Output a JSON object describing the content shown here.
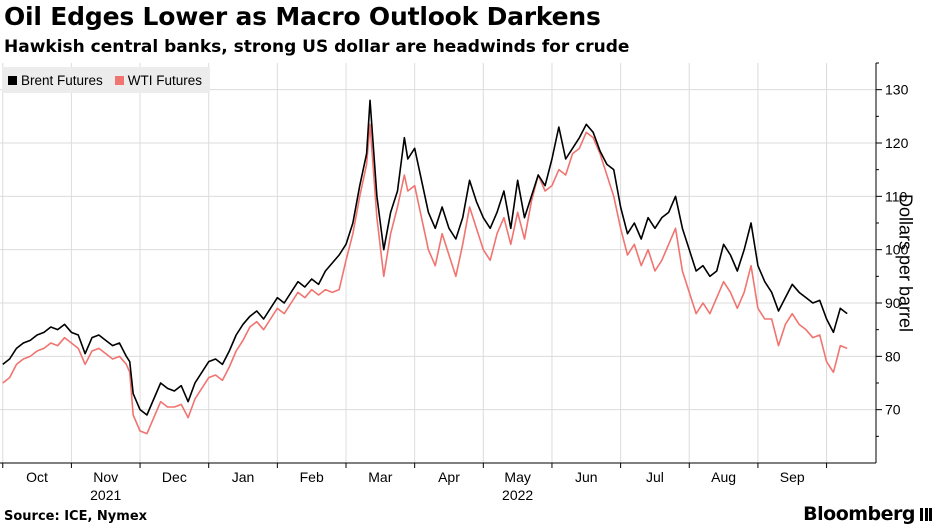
{
  "chart_data": {
    "type": "line",
    "title": "Oil Edges Lower as Macro Outlook Darkens",
    "subtitle": "Hawkish central banks, strong US dollar are headwinds for crude",
    "ylabel": "Dollars per barrel",
    "xlabel": "",
    "ylim": [
      60,
      135
    ],
    "yticks": [
      70,
      80,
      90,
      100,
      110,
      120,
      130
    ],
    "x_months": [
      {
        "label": "Oct",
        "pos": 0.5
      },
      {
        "label": "Nov",
        "pos": 1.5,
        "year": "2021"
      },
      {
        "label": "Dec",
        "pos": 2.5
      },
      {
        "label": "Jan",
        "pos": 3.5
      },
      {
        "label": "Feb",
        "pos": 4.5
      },
      {
        "label": "Mar",
        "pos": 5.5
      },
      {
        "label": "Apr",
        "pos": 6.5
      },
      {
        "label": "May",
        "pos": 7.5,
        "year": "2022"
      },
      {
        "label": "Jun",
        "pos": 8.5
      },
      {
        "label": "Jul",
        "pos": 9.5
      },
      {
        "label": "Aug",
        "pos": 10.5
      },
      {
        "label": "Sep",
        "pos": 11.5
      }
    ],
    "x_start": 0.0,
    "x_end": 12.3,
    "series": [
      {
        "name": "Brent Futures",
        "color": "#000000",
        "points": [
          [
            0.0,
            78.5
          ],
          [
            0.1,
            79.5
          ],
          [
            0.2,
            81.5
          ],
          [
            0.3,
            82.5
          ],
          [
            0.4,
            83.0
          ],
          [
            0.5,
            84.0
          ],
          [
            0.6,
            84.5
          ],
          [
            0.7,
            85.5
          ],
          [
            0.8,
            85.0
          ],
          [
            0.9,
            86.0
          ],
          [
            1.0,
            84.5
          ],
          [
            1.1,
            84.0
          ],
          [
            1.2,
            80.5
          ],
          [
            1.3,
            83.5
          ],
          [
            1.4,
            84.0
          ],
          [
            1.5,
            83.0
          ],
          [
            1.6,
            82.0
          ],
          [
            1.7,
            82.5
          ],
          [
            1.8,
            80.0
          ],
          [
            1.85,
            79.0
          ],
          [
            1.9,
            73.0
          ],
          [
            2.0,
            70.0
          ],
          [
            2.1,
            69.0
          ],
          [
            2.2,
            72.0
          ],
          [
            2.3,
            75.0
          ],
          [
            2.4,
            74.0
          ],
          [
            2.5,
            73.5
          ],
          [
            2.6,
            74.5
          ],
          [
            2.7,
            71.5
          ],
          [
            2.8,
            75.0
          ],
          [
            2.9,
            77.0
          ],
          [
            3.0,
            79.0
          ],
          [
            3.1,
            79.5
          ],
          [
            3.2,
            78.5
          ],
          [
            3.3,
            81.0
          ],
          [
            3.4,
            84.0
          ],
          [
            3.5,
            86.0
          ],
          [
            3.6,
            87.5
          ],
          [
            3.7,
            88.5
          ],
          [
            3.8,
            87.0
          ],
          [
            3.9,
            89.0
          ],
          [
            4.0,
            91.0
          ],
          [
            4.1,
            90.0
          ],
          [
            4.2,
            92.0
          ],
          [
            4.3,
            94.0
          ],
          [
            4.4,
            93.0
          ],
          [
            4.5,
            94.5
          ],
          [
            4.6,
            93.5
          ],
          [
            4.7,
            96.0
          ],
          [
            4.8,
            97.5
          ],
          [
            4.9,
            99.0
          ],
          [
            5.0,
            101.0
          ],
          [
            5.1,
            105.0
          ],
          [
            5.2,
            112.0
          ],
          [
            5.3,
            118.0
          ],
          [
            5.35,
            128.0
          ],
          [
            5.45,
            110.0
          ],
          [
            5.55,
            100.0
          ],
          [
            5.65,
            107.0
          ],
          [
            5.75,
            111.0
          ],
          [
            5.85,
            121.0
          ],
          [
            5.9,
            117.0
          ],
          [
            6.0,
            119.0
          ],
          [
            6.1,
            113.0
          ],
          [
            6.2,
            107.0
          ],
          [
            6.3,
            104.0
          ],
          [
            6.4,
            108.0
          ],
          [
            6.5,
            104.0
          ],
          [
            6.6,
            102.0
          ],
          [
            6.7,
            106.0
          ],
          [
            6.8,
            113.0
          ],
          [
            6.9,
            109.0
          ],
          [
            7.0,
            106.0
          ],
          [
            7.1,
            104.0
          ],
          [
            7.2,
            107.0
          ],
          [
            7.3,
            111.0
          ],
          [
            7.4,
            104.0
          ],
          [
            7.5,
            113.0
          ],
          [
            7.6,
            106.0
          ],
          [
            7.7,
            110.0
          ],
          [
            7.8,
            114.0
          ],
          [
            7.9,
            112.0
          ],
          [
            8.0,
            117.0
          ],
          [
            8.1,
            123.0
          ],
          [
            8.2,
            117.0
          ],
          [
            8.3,
            119.0
          ],
          [
            8.4,
            121.0
          ],
          [
            8.5,
            123.5
          ],
          [
            8.6,
            122.0
          ],
          [
            8.7,
            118.5
          ],
          [
            8.8,
            116.0
          ],
          [
            8.9,
            115.0
          ],
          [
            9.0,
            108.0
          ],
          [
            9.1,
            103.0
          ],
          [
            9.2,
            105.0
          ],
          [
            9.3,
            102.0
          ],
          [
            9.4,
            106.0
          ],
          [
            9.5,
            104.0
          ],
          [
            9.6,
            106.0
          ],
          [
            9.7,
            107.0
          ],
          [
            9.8,
            110.0
          ],
          [
            9.9,
            104.0
          ],
          [
            10.0,
            100.0
          ],
          [
            10.1,
            96.0
          ],
          [
            10.2,
            97.0
          ],
          [
            10.3,
            95.0
          ],
          [
            10.4,
            96.0
          ],
          [
            10.5,
            101.0
          ],
          [
            10.6,
            99.0
          ],
          [
            10.7,
            96.0
          ],
          [
            10.8,
            100.0
          ],
          [
            10.9,
            105.0
          ],
          [
            11.0,
            97.0
          ],
          [
            11.1,
            94.0
          ],
          [
            11.2,
            92.0
          ],
          [
            11.3,
            88.5
          ],
          [
            11.4,
            91.0
          ],
          [
            11.5,
            93.5
          ],
          [
            11.6,
            92.0
          ],
          [
            11.7,
            91.0
          ],
          [
            11.8,
            90.0
          ],
          [
            11.9,
            90.5
          ],
          [
            12.0,
            87.0
          ],
          [
            12.1,
            84.5
          ],
          [
            12.2,
            89.0
          ],
          [
            12.3,
            88.0
          ]
        ]
      },
      {
        "name": "WTI Futures",
        "color": "#f07470",
        "points": [
          [
            0.0,
            75.0
          ],
          [
            0.1,
            76.0
          ],
          [
            0.2,
            78.5
          ],
          [
            0.3,
            79.5
          ],
          [
            0.4,
            80.0
          ],
          [
            0.5,
            81.0
          ],
          [
            0.6,
            81.5
          ],
          [
            0.7,
            82.5
          ],
          [
            0.8,
            82.0
          ],
          [
            0.9,
            83.5
          ],
          [
            1.0,
            82.5
          ],
          [
            1.1,
            81.5
          ],
          [
            1.2,
            78.5
          ],
          [
            1.3,
            81.0
          ],
          [
            1.4,
            81.5
          ],
          [
            1.5,
            80.5
          ],
          [
            1.6,
            79.5
          ],
          [
            1.7,
            80.0
          ],
          [
            1.8,
            78.5
          ],
          [
            1.85,
            77.0
          ],
          [
            1.9,
            69.0
          ],
          [
            2.0,
            66.0
          ],
          [
            2.1,
            65.5
          ],
          [
            2.2,
            68.5
          ],
          [
            2.3,
            71.5
          ],
          [
            2.4,
            70.5
          ],
          [
            2.5,
            70.5
          ],
          [
            2.6,
            71.0
          ],
          [
            2.7,
            68.5
          ],
          [
            2.8,
            72.0
          ],
          [
            2.9,
            74.0
          ],
          [
            3.0,
            76.0
          ],
          [
            3.1,
            76.5
          ],
          [
            3.2,
            75.5
          ],
          [
            3.3,
            78.0
          ],
          [
            3.4,
            81.0
          ],
          [
            3.5,
            83.0
          ],
          [
            3.6,
            85.5
          ],
          [
            3.7,
            86.5
          ],
          [
            3.8,
            85.0
          ],
          [
            3.9,
            87.0
          ],
          [
            4.0,
            89.0
          ],
          [
            4.1,
            88.0
          ],
          [
            4.2,
            90.0
          ],
          [
            4.3,
            92.0
          ],
          [
            4.4,
            91.0
          ],
          [
            4.5,
            92.5
          ],
          [
            4.6,
            91.5
          ],
          [
            4.7,
            92.5
          ],
          [
            4.8,
            92.0
          ],
          [
            4.9,
            92.5
          ],
          [
            5.0,
            98.0
          ],
          [
            5.1,
            103.0
          ],
          [
            5.2,
            110.0
          ],
          [
            5.3,
            116.0
          ],
          [
            5.35,
            123.5
          ],
          [
            5.45,
            106.0
          ],
          [
            5.55,
            95.0
          ],
          [
            5.65,
            103.0
          ],
          [
            5.75,
            108.0
          ],
          [
            5.85,
            114.0
          ],
          [
            5.9,
            111.0
          ],
          [
            6.0,
            112.0
          ],
          [
            6.1,
            106.0
          ],
          [
            6.2,
            100.0
          ],
          [
            6.3,
            97.0
          ],
          [
            6.4,
            103.0
          ],
          [
            6.5,
            99.0
          ],
          [
            6.6,
            95.0
          ],
          [
            6.7,
            101.0
          ],
          [
            6.8,
            108.0
          ],
          [
            6.9,
            104.0
          ],
          [
            7.0,
            100.0
          ],
          [
            7.1,
            98.0
          ],
          [
            7.2,
            103.0
          ],
          [
            7.3,
            106.0
          ],
          [
            7.4,
            101.0
          ],
          [
            7.5,
            107.0
          ],
          [
            7.6,
            102.0
          ],
          [
            7.7,
            109.0
          ],
          [
            7.8,
            114.0
          ],
          [
            7.9,
            111.0
          ],
          [
            8.0,
            112.0
          ],
          [
            8.1,
            115.0
          ],
          [
            8.2,
            114.0
          ],
          [
            8.3,
            118.0
          ],
          [
            8.4,
            119.0
          ],
          [
            8.5,
            122.0
          ],
          [
            8.6,
            121.0
          ],
          [
            8.7,
            118.0
          ],
          [
            8.8,
            114.0
          ],
          [
            8.9,
            110.0
          ],
          [
            9.0,
            104.0
          ],
          [
            9.1,
            99.0
          ],
          [
            9.2,
            101.0
          ],
          [
            9.3,
            97.0
          ],
          [
            9.4,
            100.0
          ],
          [
            9.5,
            96.0
          ],
          [
            9.6,
            98.0
          ],
          [
            9.7,
            101.0
          ],
          [
            9.8,
            104.0
          ],
          [
            9.9,
            96.0
          ],
          [
            10.0,
            92.0
          ],
          [
            10.1,
            88.0
          ],
          [
            10.2,
            90.0
          ],
          [
            10.3,
            88.0
          ],
          [
            10.4,
            91.0
          ],
          [
            10.5,
            94.0
          ],
          [
            10.6,
            92.0
          ],
          [
            10.7,
            89.0
          ],
          [
            10.8,
            92.0
          ],
          [
            10.9,
            97.0
          ],
          [
            11.0,
            89.0
          ],
          [
            11.1,
            87.0
          ],
          [
            11.2,
            87.0
          ],
          [
            11.3,
            82.0
          ],
          [
            11.4,
            86.0
          ],
          [
            11.5,
            88.0
          ],
          [
            11.6,
            86.0
          ],
          [
            11.7,
            85.0
          ],
          [
            11.8,
            83.5
          ],
          [
            11.9,
            84.0
          ],
          [
            12.0,
            79.0
          ],
          [
            12.1,
            77.0
          ],
          [
            12.2,
            82.0
          ],
          [
            12.3,
            81.5
          ]
        ]
      }
    ]
  },
  "source": "Source: ICE, Nymex",
  "brand": "Bloomberg"
}
